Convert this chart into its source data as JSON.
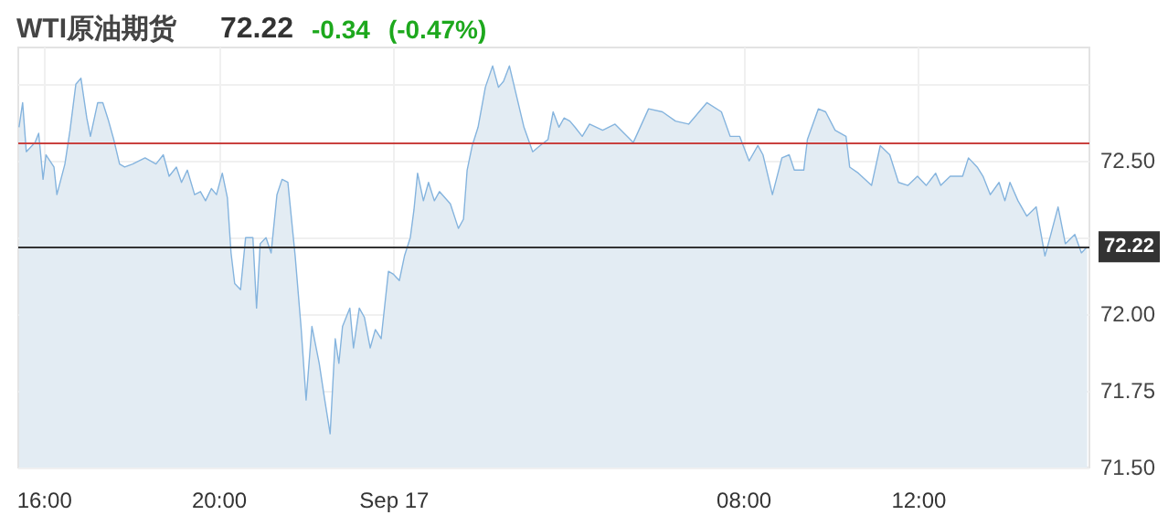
{
  "chart_data": {
    "type": "area",
    "title": "WTI原油期货",
    "annotations": [
      "72.22",
      "-0.34",
      "(-0.47%)"
    ],
    "x": [
      "--09-16T15:25",
      "--09-16T15:30",
      "--09-16T15:35",
      "--09-16T15:47",
      "--09-16T15:52",
      "--09-16T15:58",
      "--09-16T16:02",
      "--09-16T16:13",
      "--09-16T16:17",
      "--09-16T16:28",
      "--09-16T16:35",
      "--09-16T16:43",
      "--09-16T16:50",
      "--09-16T16:58",
      "--09-16T17:03",
      "--09-16T17:13",
      "--09-16T17:20",
      "--09-16T17:28",
      "--09-16T17:35",
      "--09-16T17:43",
      "--09-16T17:50",
      "--09-16T18:01",
      "--09-16T18:18",
      "--09-16T18:33",
      "--09-16T18:43",
      "--09-16T18:51",
      "--09-16T19:01",
      "--09-16T19:08",
      "--09-16T19:16",
      "--09-16T19:26",
      "--09-16T19:34",
      "--09-16T19:41",
      "--09-16T19:49",
      "--09-16T19:56",
      "--09-16T20:04",
      "--09-16T20:11",
      "--09-16T20:16",
      "--09-16T20:21",
      "--09-16T20:29",
      "--09-16T20:36",
      "--09-16T20:46",
      "--09-16T20:51",
      "--09-16T20:56",
      "--09-16T21:04",
      "--09-16T21:11",
      "--09-16T21:19",
      "--09-16T21:26",
      "--09-16T21:34",
      "--09-16T21:44",
      "--09-16T21:52",
      "--09-16T21:59",
      "--09-16T22:07",
      "--09-16T22:17",
      "--09-16T22:24",
      "--09-16T22:32",
      "--09-16T22:39",
      "--09-16T22:44",
      "--09-16T22:49",
      "--09-16T22:59",
      "--09-16T23:04",
      "--09-16T23:12",
      "--09-16T23:19",
      "--09-16T23:27",
      "--09-16T23:34",
      "--09-16T23:42",
      "--09-16T23:52",
      "--09-16T23:59",
      "--09-17T00:07",
      "--09-17T00:14",
      "--09-17T00:22",
      "--09-17T00:27",
      "--09-17T00:32",
      "--09-17T00:40",
      "--09-17T00:47",
      "--09-17T00:55",
      "--09-17T01:02",
      "--09-17T01:17",
      "--09-17T01:28",
      "--09-17T01:35",
      "--09-17T01:40",
      "--09-17T01:47",
      "--09-17T01:55",
      "--09-17T02:05",
      "--09-17T02:15",
      "--09-17T02:23",
      "--09-17T02:30",
      "--09-17T02:38",
      "--09-17T02:47",
      "--09-17T02:58",
      "--09-17T03:10",
      "--09-17T03:20",
      "--09-17T03:31",
      "--09-17T03:38",
      "--09-17T03:46",
      "--09-17T03:53",
      "--09-17T04:01",
      "--09-17T04:08",
      "--09-17T04:18",
      "--09-17T04:28",
      "--09-17T04:46",
      "--09-17T05:03",
      "--09-17T05:28",
      "--09-17T05:49",
      "--09-17T06:08",
      "--09-17T06:26",
      "--09-17T06:44",
      "--09-17T07:09",
      "--09-17T07:29",
      "--09-17T07:41",
      "--09-17T07:54",
      "--09-17T08:07",
      "--09-17T08:19",
      "--09-17T08:26",
      "--09-17T08:39",
      "--09-17T08:52",
      "--09-17T09:02",
      "--09-17T09:09",
      "--09-17T09:22",
      "--09-17T09:27",
      "--09-17T09:42",
      "--09-17T09:52",
      "--09-17T10:05",
      "--09-17T10:20",
      "--09-17T10:25",
      "--09-17T10:37",
      "--09-17T10:55",
      "--09-17T11:07",
      "--09-17T11:20",
      "--09-17T11:32",
      "--09-17T11:45",
      "--09-17T11:58",
      "--09-17T12:10",
      "--09-17T12:23",
      "--09-17T12:30",
      "--09-17T12:43",
      "--09-17T13:00",
      "--09-17T13:08",
      "--09-17T13:20",
      "--09-17T13:28",
      "--09-17T13:38",
      "--09-17T13:50",
      "--09-17T13:58",
      "--09-17T14:05",
      "--09-17T14:16",
      "--09-17T14:28",
      "--09-17T14:41",
      "--09-17T14:53",
      "--09-17T15:01",
      "--09-17T15:11",
      "--09-17T15:21",
      "--09-17T15:34",
      "--09-17T15:43",
      "--09-17T15:51"
    ],
    "series": [
      {
        "color": "#85b4de",
        "values": [
          72.61,
          72.69,
          72.53,
          72.56,
          72.59,
          72.44,
          72.52,
          72.48,
          72.39,
          72.49,
          72.6,
          72.75,
          72.77,
          72.64,
          72.58,
          72.69,
          72.69,
          72.63,
          72.57,
          72.49,
          72.48,
          72.49,
          72.51,
          72.49,
          72.52,
          72.45,
          72.48,
          72.43,
          72.47,
          72.39,
          72.4,
          72.37,
          72.41,
          72.39,
          72.46,
          72.38,
          72.2,
          72.1,
          72.08,
          72.25,
          72.25,
          72.02,
          72.23,
          72.25,
          72.2,
          72.39,
          72.44,
          72.43,
          72.19,
          71.96,
          71.72,
          71.96,
          71.84,
          71.73,
          71.61,
          71.92,
          71.84,
          71.96,
          72.02,
          71.89,
          72.02,
          71.99,
          71.89,
          71.95,
          71.92,
          72.14,
          72.13,
          72.11,
          72.19,
          72.25,
          72.34,
          72.46,
          72.37,
          72.43,
          72.37,
          72.4,
          72.36,
          72.28,
          72.31,
          72.47,
          72.55,
          72.61,
          72.74,
          72.81,
          72.74,
          72.76,
          72.81,
          72.72,
          72.61,
          72.53,
          72.55,
          72.57,
          72.66,
          72.61,
          72.64,
          72.63,
          72.61,
          72.58,
          72.62,
          72.6,
          72.62,
          72.56,
          72.67,
          72.66,
          72.63,
          72.62,
          72.69,
          72.66,
          72.58,
          72.58,
          72.5,
          72.55,
          72.52,
          72.39,
          72.51,
          72.52,
          72.47,
          72.47,
          72.57,
          72.67,
          72.66,
          72.6,
          72.58,
          72.48,
          72.46,
          72.42,
          72.55,
          72.52,
          72.43,
          72.42,
          72.45,
          72.42,
          72.46,
          72.42,
          72.45,
          72.45,
          72.51,
          72.48,
          72.45,
          72.39,
          72.43,
          72.37,
          72.43,
          72.37,
          72.32,
          72.35,
          72.19,
          72.26,
          72.35,
          72.23,
          72.26,
          72.2,
          72.22
        ]
      }
    ],
    "xlim": [
      "--09-16T15:24",
      "--09-17T15:54"
    ],
    "xticks": [
      {
        "value": "--09-16T16:00",
        "label": "16:00"
      },
      {
        "value": "--09-16T20:00",
        "label": "20:00"
      },
      {
        "value": "--09-17T00:00",
        "label": "Sep 17"
      },
      {
        "value": "--09-17T08:00",
        "label": "08:00"
      },
      {
        "value": "--09-17T12:00",
        "label": "12:00"
      }
    ],
    "ylim": [
      71.5,
      72.87
    ],
    "yticks": [
      {
        "value": 71.5,
        "label": "71.50"
      },
      {
        "value": 71.75,
        "label": "71.75"
      },
      {
        "value": 72,
        "label": "72.00"
      },
      {
        "value": 72.25,
        "label": null
      },
      {
        "value": 72.5,
        "label": "72.50"
      },
      {
        "value": 72.75,
        "label": null
      }
    ],
    "ref_lines": [
      {
        "axis": "y",
        "value": 72.56,
        "color": "#c9413f"
      },
      {
        "axis": "y",
        "value": 72.22,
        "label": "72.22",
        "color": "#333333"
      }
    ],
    "grid": true,
    "marker": "none",
    "line_style": "solid"
  }
}
